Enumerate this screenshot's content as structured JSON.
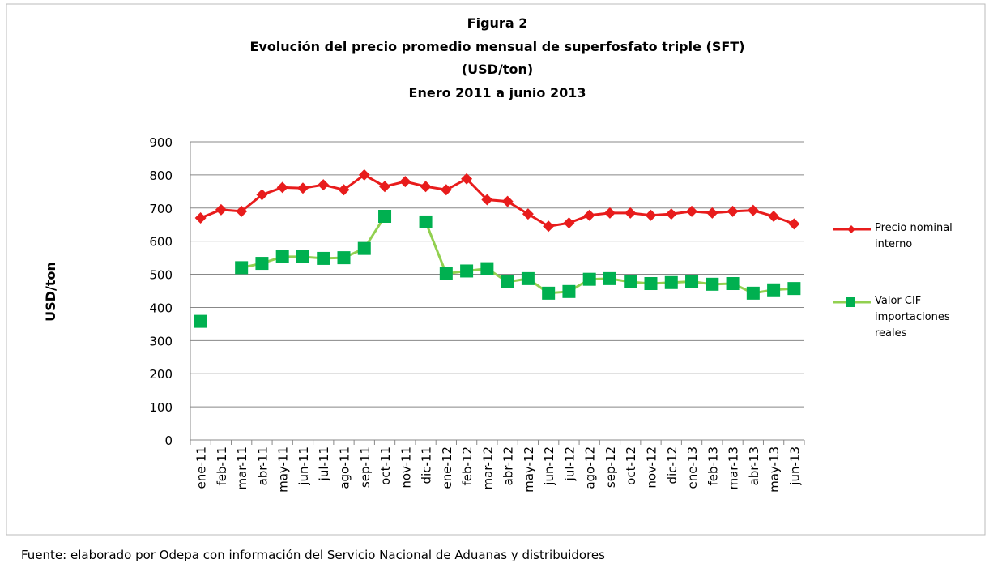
{
  "chart_data": {
    "type": "line",
    "title": [
      "Figura 2",
      "Evolución del precio promedio mensual de superfosfato triple (SFT)",
      "(USD/ton)",
      "Enero 2011 a junio 2013"
    ],
    "y_label": "USD/ton",
    "categories": [
      "ene-11",
      "feb-11",
      "mar-11",
      "abr-11",
      "may-11",
      "jun-11",
      "jul-11",
      "ago-11",
      "sep-11",
      "oct-11",
      "nov-11",
      "dic-11",
      "ene-12",
      "feb-12",
      "mar-12",
      "abr-12",
      "may-12",
      "jun-12",
      "jul-12",
      "ago-12",
      "sep-12",
      "oct-12",
      "nov-12",
      "dic-12",
      "ene-13",
      "feb-13",
      "mar-13",
      "abr-13",
      "may-13",
      "jun-13"
    ],
    "series": [
      {
        "name": "Precio nominal interno",
        "color": "#e81c1c",
        "marker": "diamond",
        "values": [
          670,
          695,
          690,
          740,
          762,
          760,
          770,
          755,
          800,
          765,
          780,
          765,
          755,
          788,
          725,
          720,
          682,
          645,
          655,
          678,
          685,
          685,
          678,
          682,
          690,
          685,
          690,
          693,
          675,
          652
        ]
      },
      {
        "name": "Valor CIF importaciones reales",
        "color": "#92d050",
        "marker_color": "#00b050",
        "marker": "square",
        "values": [
          358,
          null,
          520,
          533,
          553,
          553,
          548,
          550,
          578,
          675,
          null,
          658,
          502,
          510,
          517,
          477,
          487,
          443,
          448,
          485,
          487,
          477,
          472,
          475,
          478,
          470,
          472,
          443,
          453,
          457
        ]
      }
    ],
    "ylim": [
      0,
      900
    ],
    "yticks": [
      0,
      100,
      200,
      300,
      400,
      500,
      600,
      700,
      800,
      900
    ],
    "grid": true,
    "legend": "right",
    "source": "Fuente: elaborado por Odepa con información del Servicio Nacional de Aduanas y distribuidores"
  }
}
